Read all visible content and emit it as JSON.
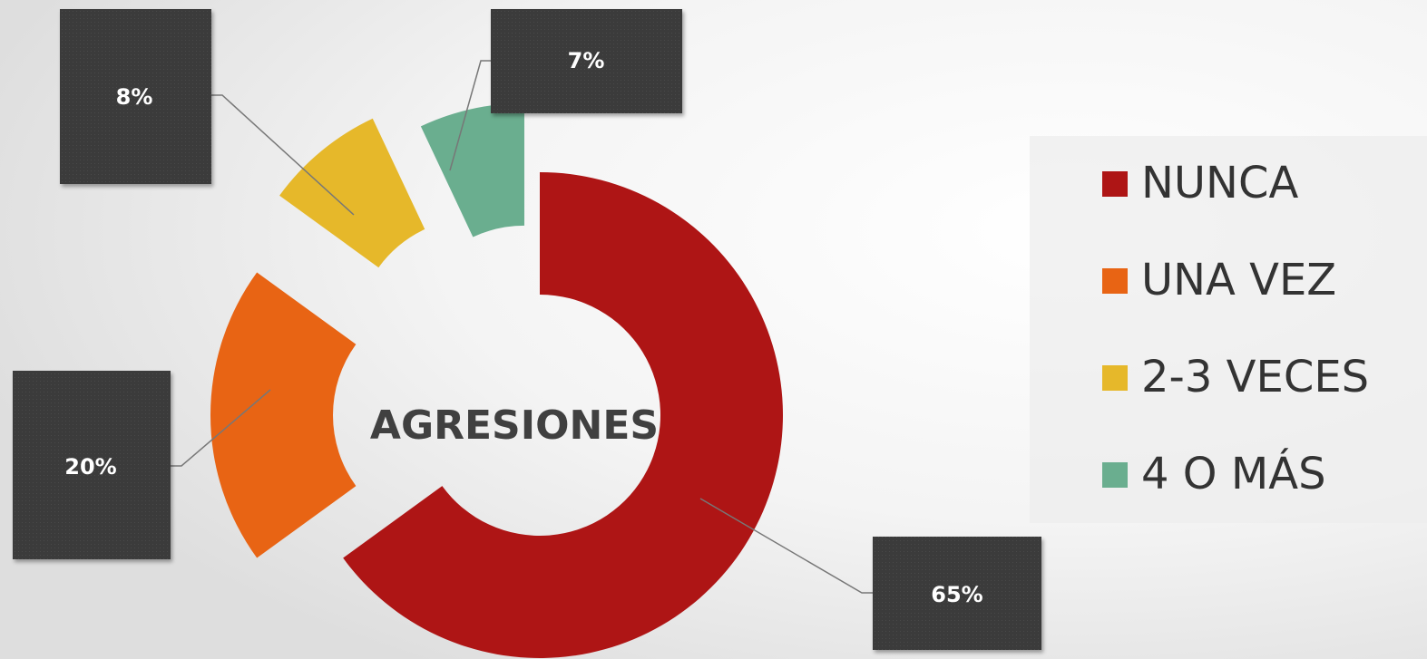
{
  "chart_data": {
    "type": "donut",
    "title": "AGRESIONES",
    "categories": [
      "NUNCA",
      "UNA VEZ",
      "2-3 VECES",
      "4 O MÁS"
    ],
    "values": [
      65,
      20,
      8,
      7
    ],
    "value_labels": [
      "65%",
      "20%",
      "8%",
      "7%"
    ],
    "colors": [
      "#ae1515",
      "#e86414",
      "#e6b82a",
      "#6aae8f"
    ],
    "legend": "right"
  }
}
